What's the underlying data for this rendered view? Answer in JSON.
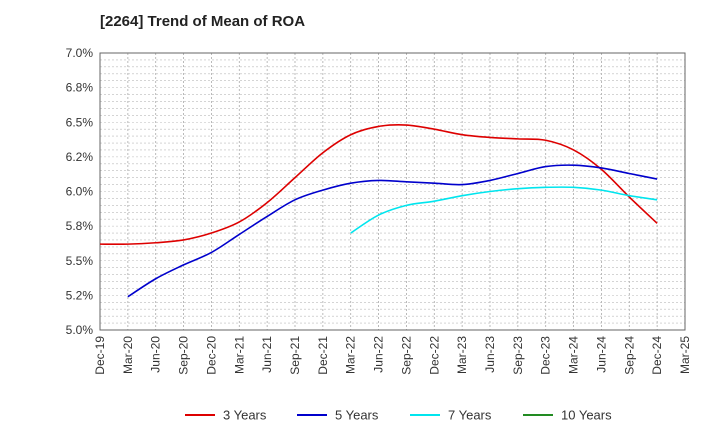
{
  "chart_data": {
    "type": "line",
    "title": "[2264]  Trend of Mean of ROA",
    "xlabel": "",
    "ylabel": "",
    "ylim": [
      5.0,
      7.0
    ],
    "y_ticks": [
      5.0,
      5.25,
      5.5,
      5.75,
      6.0,
      6.25,
      6.5,
      6.75,
      7.0
    ],
    "y_tick_labels": [
      "5.0%",
      "5.2%",
      "5.5%",
      "5.8%",
      "6.0%",
      "6.2%",
      "6.5%",
      "6.8%",
      "7.0%"
    ],
    "x_ticks": [
      "Dec-19",
      "Mar-20",
      "Jun-20",
      "Sep-20",
      "Dec-20",
      "Mar-21",
      "Jun-21",
      "Sep-21",
      "Dec-21",
      "Mar-22",
      "Jun-22",
      "Sep-22",
      "Dec-22",
      "Mar-23",
      "Jun-23",
      "Sep-23",
      "Dec-23",
      "Mar-24",
      "Jun-24",
      "Sep-24",
      "Dec-24",
      "Mar-25"
    ],
    "grid": true,
    "legend_position": "bottom",
    "series": [
      {
        "name": "3 Years",
        "color": "#dd0000",
        "x": [
          "Dec-19",
          "Mar-20",
          "Jun-20",
          "Sep-20",
          "Dec-20",
          "Mar-21",
          "Jun-21",
          "Sep-21",
          "Dec-21",
          "Mar-22",
          "Jun-22",
          "Sep-22",
          "Dec-22",
          "Mar-23",
          "Jun-23",
          "Sep-23",
          "Dec-23",
          "Mar-24",
          "Jun-24",
          "Sep-24",
          "Dec-24"
        ],
        "values": [
          5.62,
          5.62,
          5.63,
          5.65,
          5.7,
          5.78,
          5.92,
          6.1,
          6.28,
          6.41,
          6.47,
          6.48,
          6.45,
          6.41,
          6.39,
          6.38,
          6.37,
          6.3,
          6.16,
          5.96,
          5.77
        ]
      },
      {
        "name": "5 Years",
        "color": "#0000cc",
        "x": [
          "Mar-20",
          "Jun-20",
          "Sep-20",
          "Dec-20",
          "Mar-21",
          "Jun-21",
          "Sep-21",
          "Dec-21",
          "Mar-22",
          "Jun-22",
          "Sep-22",
          "Dec-22",
          "Mar-23",
          "Jun-23",
          "Sep-23",
          "Dec-23",
          "Mar-24",
          "Jun-24",
          "Sep-24",
          "Dec-24"
        ],
        "values": [
          5.24,
          5.37,
          5.47,
          5.56,
          5.69,
          5.82,
          5.94,
          6.01,
          6.06,
          6.08,
          6.07,
          6.06,
          6.05,
          6.08,
          6.13,
          6.18,
          6.19,
          6.17,
          6.13,
          6.09
        ]
      },
      {
        "name": "7 Years",
        "color": "#00e5ee",
        "x": [
          "Mar-22",
          "Jun-22",
          "Sep-22",
          "Dec-22",
          "Mar-23",
          "Jun-23",
          "Sep-23",
          "Dec-23",
          "Mar-24",
          "Jun-24",
          "Sep-24",
          "Dec-24"
        ],
        "values": [
          5.7,
          5.83,
          5.9,
          5.93,
          5.97,
          6.0,
          6.02,
          6.03,
          6.03,
          6.01,
          5.97,
          5.94
        ]
      },
      {
        "name": "10 Years",
        "color": "#228b22",
        "x": [],
        "values": []
      }
    ]
  }
}
